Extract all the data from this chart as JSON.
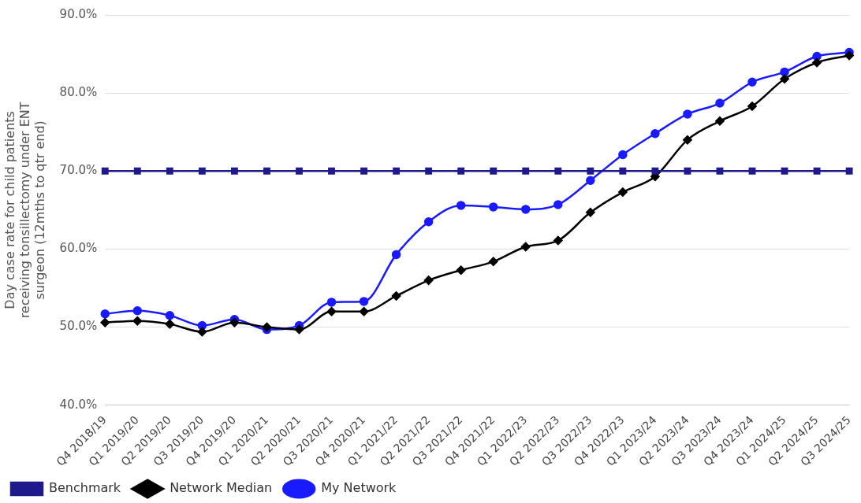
{
  "chart_data": {
    "type": "line",
    "ylabel": "Day case rate for child patients receiving tonsillectomy under ENT surgeon (12mths to qtr end)",
    "categories": [
      "Q4 2018/19",
      "Q1 2019/20",
      "Q2 2019/20",
      "Q3 2019/20",
      "Q4 2019/20",
      "Q1 2020/21",
      "Q2 2020/21",
      "Q3 2020/21",
      "Q4 2020/21",
      "Q1 2021/22",
      "Q2 2021/22",
      "Q3 2021/22",
      "Q4 2021/22",
      "Q1 2022/23",
      "Q2 2022/23",
      "Q3 2022/23",
      "Q4 2022/23",
      "Q1 2023/24",
      "Q2 2023/24",
      "Q3 2023/24",
      "Q4 2023/24",
      "Q1 2024/25",
      "Q2 2024/25",
      "Q3 2024/25"
    ],
    "series": [
      {
        "name": "My Network",
        "color": "#1a1aff",
        "marker": "circle",
        "values": [
          51.7,
          52.1,
          51.5,
          50.2,
          51.0,
          49.7,
          50.2,
          53.2,
          53.3,
          59.3,
          63.5,
          65.6,
          65.4,
          65.1,
          65.7,
          68.8,
          72.1,
          74.8,
          77.3,
          78.7,
          81.4,
          82.7,
          84.7,
          85.2
        ]
      },
      {
        "name": "Network Median",
        "color": "#000000",
        "marker": "diamond",
        "values": [
          50.6,
          50.8,
          50.4,
          49.4,
          50.6,
          50.0,
          49.7,
          52.0,
          52.0,
          54.0,
          56.0,
          57.3,
          58.4,
          60.3,
          61.1,
          64.7,
          67.3,
          69.3,
          74.0,
          76.4,
          78.3,
          81.8,
          83.9,
          84.8
        ]
      },
      {
        "name": "Benchmark",
        "color": "#1f1a8c",
        "marker": "square",
        "values": [
          70,
          70,
          70,
          70,
          70,
          70,
          70,
          70,
          70,
          70,
          70,
          70,
          70,
          70,
          70,
          70,
          70,
          70,
          70,
          70,
          70,
          70,
          70,
          70
        ]
      }
    ],
    "ylim": [
      40,
      90
    ],
    "yticks": [
      {
        "value": 40,
        "label": "40.0%"
      },
      {
        "value": 50,
        "label": "50.0%"
      },
      {
        "value": 60,
        "label": "60.0%"
      },
      {
        "value": 70,
        "label": "70.0%"
      },
      {
        "value": 80,
        "label": "80.0%"
      },
      {
        "value": 90,
        "label": "90.0%"
      }
    ],
    "grid": "y",
    "legend": "bottom",
    "line_style": "solid"
  }
}
